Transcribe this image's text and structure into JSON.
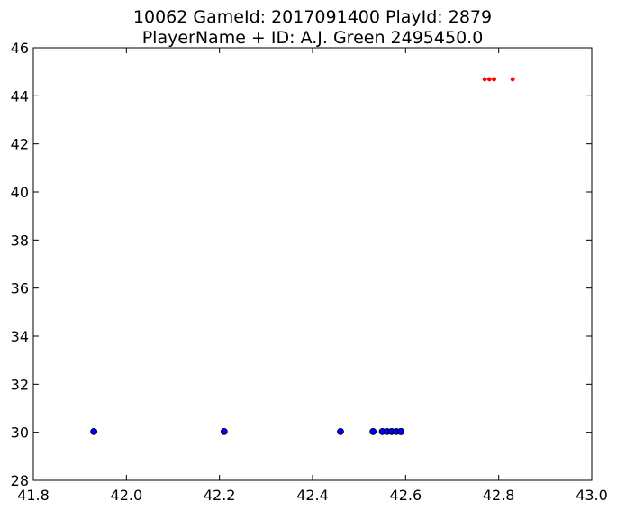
{
  "chart_data": {
    "type": "scatter",
    "title": "10062 GameId: 2017091400 PlayId: 2879",
    "subtitle": "PlayerName + ID: A.J. Green 2495450.0",
    "xlabel": "",
    "ylabel": "",
    "xlim": [
      41.8,
      43.0
    ],
    "ylim": [
      28,
      46
    ],
    "x_ticks": [
      41.8,
      42.0,
      42.2,
      42.4,
      42.6,
      42.8,
      43.0
    ],
    "x_tick_labels": [
      "41.8",
      "42.0",
      "42.2",
      "42.4",
      "42.6",
      "42.8",
      "43.0"
    ],
    "y_ticks": [
      28,
      30,
      32,
      34,
      36,
      38,
      40,
      42,
      44,
      46
    ],
    "y_tick_labels": [
      "28",
      "30",
      "32",
      "34",
      "36",
      "38",
      "40",
      "42",
      "44",
      "46"
    ],
    "grid": false,
    "series": [
      {
        "color": "#0000ff",
        "marker": "large-circle",
        "points": [
          {
            "x": 41.93,
            "y": 30.03
          },
          {
            "x": 42.21,
            "y": 30.03
          },
          {
            "x": 42.46,
            "y": 30.03
          },
          {
            "x": 42.53,
            "y": 30.03
          },
          {
            "x": 42.55,
            "y": 30.03
          },
          {
            "x": 42.56,
            "y": 30.03
          },
          {
            "x": 42.57,
            "y": 30.03
          },
          {
            "x": 42.58,
            "y": 30.03
          },
          {
            "x": 42.59,
            "y": 30.03
          },
          {
            "x": 42.59,
            "y": 30.03
          }
        ]
      },
      {
        "color": "#ff0000",
        "marker": "small-circle",
        "points": [
          {
            "x": 42.77,
            "y": 44.69
          },
          {
            "x": 42.78,
            "y": 44.69
          },
          {
            "x": 42.79,
            "y": 44.69
          },
          {
            "x": 42.83,
            "y": 44.69
          }
        ]
      }
    ]
  }
}
